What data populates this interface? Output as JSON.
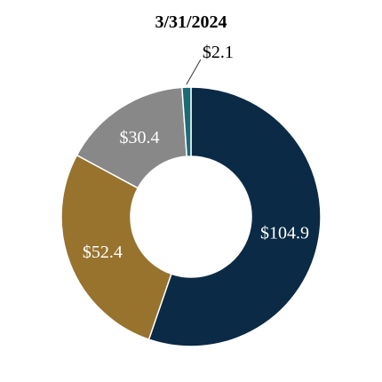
{
  "chart_data": {
    "type": "pie",
    "style": "donut",
    "title": "3/31/2024",
    "slices": [
      {
        "label": "$104.9",
        "value": 104.9,
        "color": "#0b2a45",
        "label_color": "#ffffff",
        "label_position": "inside"
      },
      {
        "label": "$52.4",
        "value": 52.4,
        "color": "#97732e",
        "label_color": "#ffffff",
        "label_position": "inside"
      },
      {
        "label": "$30.4",
        "value": 30.4,
        "color": "#888888",
        "label_color": "#ffffff",
        "label_position": "inside"
      },
      {
        "label": "$2.1",
        "value": 2.1,
        "color": "#1b6b74",
        "label_color": "#000000",
        "label_position": "outside"
      }
    ],
    "legend": "none"
  }
}
